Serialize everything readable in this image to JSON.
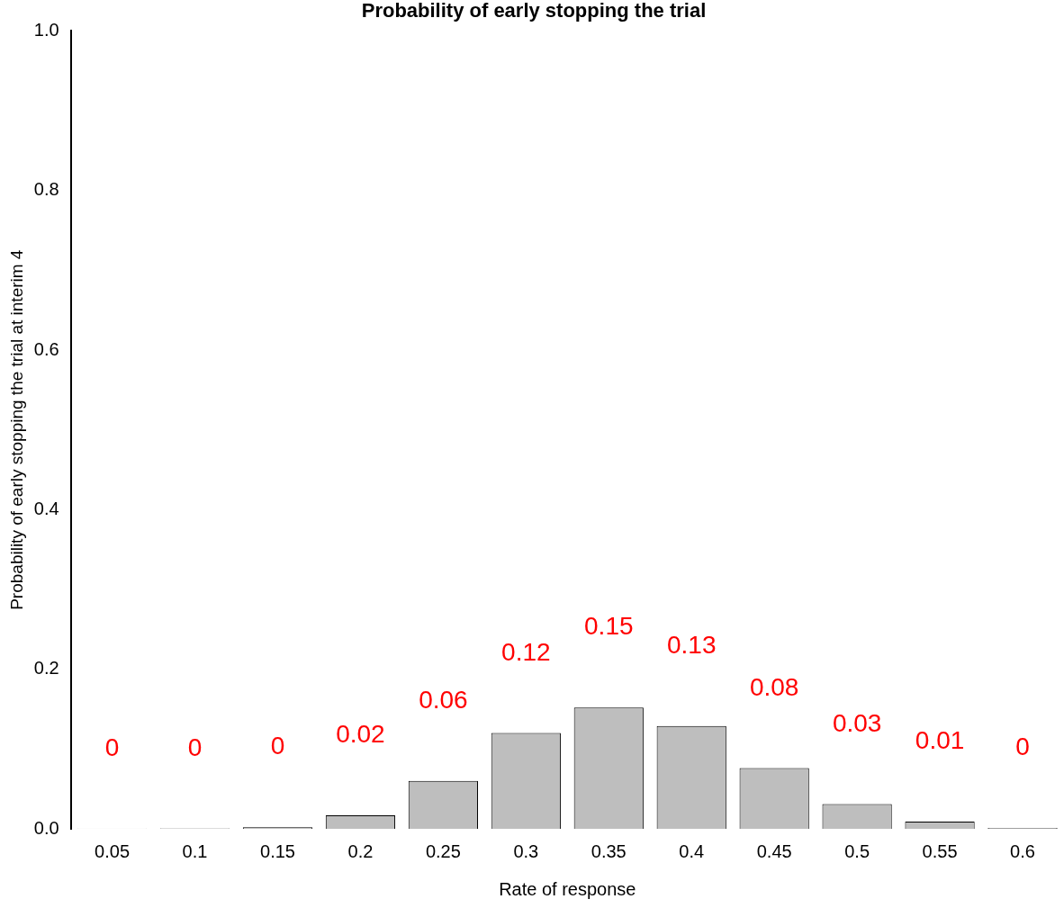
{
  "chart_data": {
    "type": "bar",
    "title": "Probability of early stopping the trial",
    "xlabel": "Rate of response",
    "ylabel": "Probability of early stopping the trial at interim 4",
    "categories": [
      "0.05",
      "0.1",
      "0.15",
      "0.2",
      "0.25",
      "0.3",
      "0.35",
      "0.4",
      "0.45",
      "0.5",
      "0.55",
      "0.6"
    ],
    "values": [
      0.0003,
      0.0005,
      0.002,
      0.017,
      0.06,
      0.12,
      0.152,
      0.129,
      0.076,
      0.031,
      0.009,
      0.001
    ],
    "value_labels": [
      "0",
      "0",
      "0",
      "0.02",
      "0.06",
      "0.12",
      "0.15",
      "0.13",
      "0.08",
      "0.03",
      "0.01",
      "0"
    ],
    "color": "#bebebe",
    "ylim": [
      0,
      1
    ],
    "yticks": [
      {
        "value": 0,
        "label": "0.0"
      },
      {
        "value": 0.2,
        "label": "0.2"
      },
      {
        "value": 0.4,
        "label": "0.4"
      },
      {
        "value": 0.6,
        "label": "0.6"
      },
      {
        "value": 0.8,
        "label": "0.8"
      },
      {
        "value": 1,
        "label": "1.0"
      }
    ],
    "grid": false,
    "legend": false
  }
}
